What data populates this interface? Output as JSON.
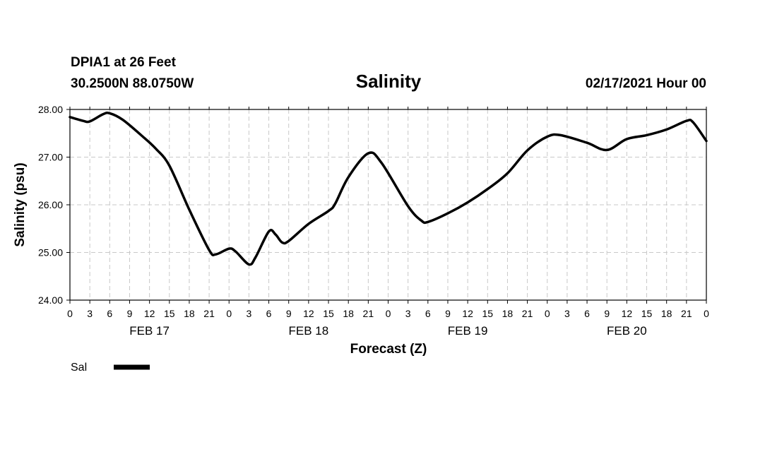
{
  "header": {
    "station": "DPIA1 at 26 Feet",
    "location": "30.2500N 88.0750W",
    "title": "Salinity",
    "run": "02/17/2021 Hour 00"
  },
  "chart_data": {
    "type": "line",
    "title": "Salinity",
    "xlabel": "Forecast (Z)",
    "ylabel": "Salinity (psu)",
    "ylim": [
      24.0,
      28.0
    ],
    "yticks": [
      "24.00",
      "25.00",
      "26.00",
      "27.00",
      "28.00"
    ],
    "xlim": [
      "02/17/2021 00Z",
      "02/21/2021 00Z"
    ],
    "xticks": [
      "0",
      "3",
      "6",
      "9",
      "12",
      "15",
      "18",
      "21",
      "0",
      "3",
      "6",
      "9",
      "12",
      "15",
      "18",
      "21",
      "0",
      "3",
      "6",
      "9",
      "12",
      "15",
      "18",
      "21",
      "0",
      "3",
      "6",
      "9",
      "12",
      "15",
      "18",
      "21",
      "0"
    ],
    "day_labels": [
      "FEB 17",
      "FEB 18",
      "FEB 19",
      "FEB 20"
    ],
    "grid": true,
    "legend": "bottom-left",
    "series": [
      {
        "name": "Sal",
        "color": "#000000",
        "points": [
          [
            "02/17/2021 00Z",
            27.84
          ],
          [
            "02/17/2021 02Z",
            27.76
          ],
          [
            "02/17/2021 03Z",
            27.75
          ],
          [
            "02/17/2021 05Z",
            27.9
          ],
          [
            "02/17/2021 06Z",
            27.92
          ],
          [
            "02/17/2021 08Z",
            27.78
          ],
          [
            "02/17/2021 11Z",
            27.43
          ],
          [
            "02/17/2021 13Z",
            27.17
          ],
          [
            "02/17/2021 15Z",
            26.82
          ],
          [
            "02/17/2021 18Z",
            25.9
          ],
          [
            "02/17/2021 21Z",
            25.05
          ],
          [
            "02/17/2021 22Z",
            24.96
          ],
          [
            "02/18/2021 00Z",
            25.08
          ],
          [
            "02/18/2021 01Z",
            25.02
          ],
          [
            "02/18/2021 03Z",
            24.75
          ],
          [
            "02/18/2021 04Z",
            24.9
          ],
          [
            "02/18/2021 06Z",
            25.44
          ],
          [
            "02/18/2021 07Z",
            25.38
          ],
          [
            "02/18/2021 08Z",
            25.21
          ],
          [
            "02/18/2021 09Z",
            25.24
          ],
          [
            "02/18/2021 12Z",
            25.6
          ],
          [
            "02/18/2021 15Z",
            25.87
          ],
          [
            "02/18/2021 16Z",
            26.02
          ],
          [
            "02/18/2021 18Z",
            26.58
          ],
          [
            "02/18/2021 21Z",
            27.08
          ],
          [
            "02/18/2021 23Z",
            26.88
          ],
          [
            "02/19/2021 03Z",
            25.97
          ],
          [
            "02/19/2021 05Z",
            25.67
          ],
          [
            "02/19/2021 06Z",
            25.64
          ],
          [
            "02/19/2021 09Z",
            25.82
          ],
          [
            "02/19/2021 12Z",
            26.05
          ],
          [
            "02/19/2021 15Z",
            26.33
          ],
          [
            "02/19/2021 18Z",
            26.66
          ],
          [
            "02/19/2021 21Z",
            27.14
          ],
          [
            "02/20/2021 00Z",
            27.43
          ],
          [
            "02/20/2021 02Z",
            27.46
          ],
          [
            "02/20/2021 06Z",
            27.3
          ],
          [
            "02/20/2021 09Z",
            27.15
          ],
          [
            "02/20/2021 12Z",
            27.38
          ],
          [
            "02/20/2021 15Z",
            27.46
          ],
          [
            "02/20/2021 18Z",
            27.58
          ],
          [
            "02/20/2021 21Z",
            27.76
          ],
          [
            "02/20/2021 22Z",
            27.73
          ],
          [
            "02/21/2021 00Z",
            27.34
          ]
        ]
      }
    ]
  }
}
